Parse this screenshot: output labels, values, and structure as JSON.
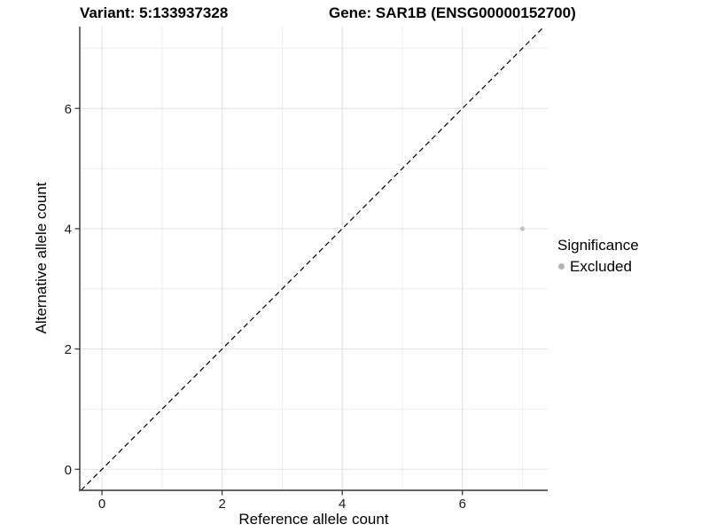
{
  "header": {
    "variant_title": "Variant: 5:133937328",
    "gene_title": "Gene: SAR1B (ENSG00000152700)"
  },
  "legend": {
    "title": "Significance",
    "position": "right",
    "items": [
      {
        "label": "Excluded",
        "color": "#b3b3b3"
      }
    ]
  },
  "chart_data": {
    "type": "scatter",
    "xlabel": "Reference allele count",
    "ylabel": "Alternative allele count",
    "x_ticks": [
      0,
      2,
      4,
      6
    ],
    "y_ticks": [
      0,
      2,
      4,
      6
    ],
    "x_minor_ticks": [
      1,
      3,
      5,
      7
    ],
    "y_minor_ticks": [
      1,
      3,
      5,
      7
    ],
    "xlim": [
      -0.37,
      7.42
    ],
    "ylim": [
      -0.35,
      7.36
    ],
    "grid": "major+minor",
    "series": [
      {
        "name": "Excluded",
        "color": "#c2c2c2",
        "points": [
          {
            "x": 7,
            "y": 4
          }
        ]
      }
    ],
    "abline": {
      "slope": 1,
      "intercept": 0,
      "line_style": "dashed",
      "color": "#000000"
    }
  },
  "colors": {
    "background": "#ffffff",
    "grid_major": "#e3e3e3",
    "grid_minor": "#efefef",
    "axis": "#333333",
    "tick_text": "#1a1a1a"
  }
}
